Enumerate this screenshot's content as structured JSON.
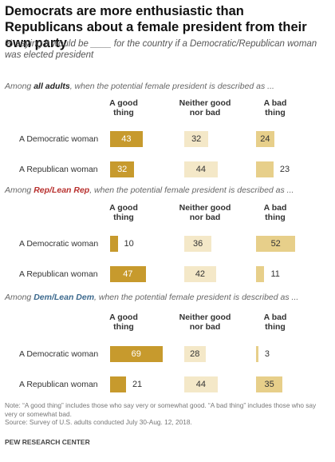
{
  "title": "Democrats are more enthusiastic than Republicans about a female president from their own party",
  "subtitle": "% saying it would be ____ for the country if a Democratic/Republican woman was elected president",
  "chart_data": {
    "type": "bar",
    "categories": [
      "A Democratic woman",
      "A Republican woman"
    ],
    "column_headers": {
      "good": "A good thing",
      "neither": "Neither good nor bad",
      "bad": "A bad thing"
    },
    "colors": {
      "good": "#c79a2d",
      "neither": "#f4e8c8",
      "bad": "#e7cf8a"
    },
    "panels": [
      {
        "prefix": "Among ",
        "group": "all adults",
        "group_color": "#222222",
        "suffix": ", when the potential female president is described as ...",
        "series": [
          {
            "name": "A good thing",
            "values": [
              43,
              32
            ]
          },
          {
            "name": "Neither good nor bad",
            "values": [
              32,
              44
            ]
          },
          {
            "name": "A bad thing",
            "values": [
              24,
              23
            ]
          }
        ]
      },
      {
        "prefix": "Among ",
        "group": "Rep/Lean Rep",
        "group_color": "#b8312f",
        "suffix": ", when the potential female president is described as ...",
        "series": [
          {
            "name": "A good thing",
            "values": [
              10,
              47
            ]
          },
          {
            "name": "Neither good nor bad",
            "values": [
              36,
              42
            ]
          },
          {
            "name": "A bad thing",
            "values": [
              52,
              11
            ]
          }
        ]
      },
      {
        "prefix": "Among ",
        "group": "Dem/Lean Dem",
        "group_color": "#3d6a8e",
        "suffix": ", when the potential female president is described as ...",
        "series": [
          {
            "name": "A good thing",
            "values": [
              69,
              21
            ]
          },
          {
            "name": "Neither good nor bad",
            "values": [
              28,
              44
            ]
          },
          {
            "name": "A bad thing",
            "values": [
              3,
              35
            ]
          }
        ]
      }
    ]
  },
  "footnote": "Note: “A good thing” includes those who say very or somewhat good. “A bad thing” includes those who say very or somewhat bad.",
  "source_note": "Source: Survey of U.S. adults conducted July 30-Aug. 12, 2018.",
  "source": "PEW RESEARCH CENTER"
}
